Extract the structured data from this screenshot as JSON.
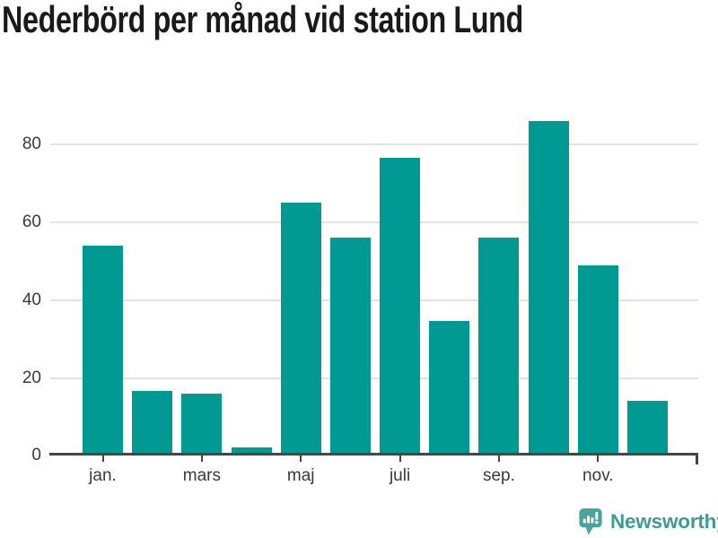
{
  "chart_data": {
    "type": "bar",
    "title": "Nederbörd per månad vid station Lund",
    "values": [
      54,
      16.5,
      16,
      2,
      65,
      56,
      76.5,
      34.5,
      56,
      86,
      49,
      14
    ],
    "x_ticks": [
      {
        "index": 0,
        "label": "jan."
      },
      {
        "index": 2,
        "label": "mars"
      },
      {
        "index": 4,
        "label": "maj"
      },
      {
        "index": 6,
        "label": "juli"
      },
      {
        "index": 8,
        "label": "sep."
      },
      {
        "index": 10,
        "label": "nov."
      }
    ],
    "y_ticks": [
      0,
      20,
      40,
      60,
      80
    ],
    "ylim": [
      0,
      89
    ],
    "grid": "horizontal",
    "legend": "none",
    "xlabel": "",
    "ylabel": ""
  },
  "style": {
    "bar_color": "#009a93",
    "grid_color": "#e3e3e3",
    "axis_color": "#454545",
    "tick_label_color": "#3a3a3a",
    "title_color": "#1a1a1a",
    "background": "#ffffff"
  },
  "branding": {
    "name": "Newsworthy",
    "text_color": "#3e9b92",
    "icon_color": "#4ba49b",
    "icon_glyph_color": "#ffffff"
  }
}
